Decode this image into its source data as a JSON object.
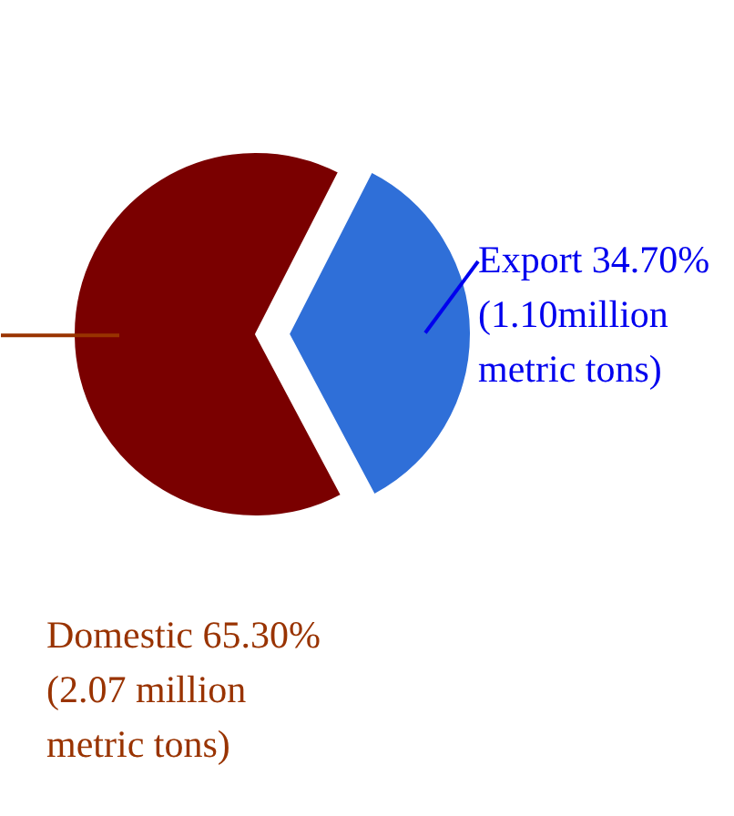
{
  "chart_data": {
    "type": "pie",
    "categories": [
      "Export",
      "Domestic"
    ],
    "values": [
      34.7,
      65.3
    ],
    "colors": [
      "#2f6fd8",
      "#7a0000"
    ],
    "value_labels": [
      "34.70%",
      "65.30%"
    ],
    "annotations": [
      "(1.10million\nmetric tons)",
      "(2.07 million\nmetric tons)"
    ]
  }
}
